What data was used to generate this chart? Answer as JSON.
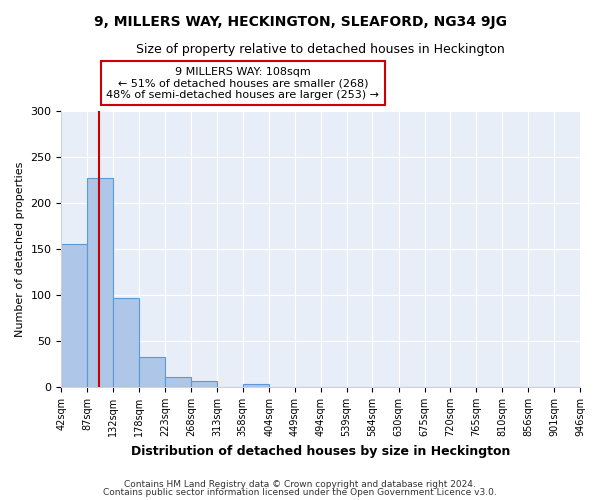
{
  "title": "9, MILLERS WAY, HECKINGTON, SLEAFORD, NG34 9JG",
  "subtitle": "Size of property relative to detached houses in Heckington",
  "xlabel": "Distribution of detached houses by size in Heckington",
  "ylabel": "Number of detached properties",
  "bin_edges": [
    42,
    87,
    132,
    178,
    223,
    268,
    313,
    358,
    404,
    449,
    494,
    539,
    584,
    630,
    675,
    720,
    765,
    810,
    856,
    901,
    946
  ],
  "bar_heights": [
    155,
    227,
    97,
    33,
    11,
    7,
    0,
    3,
    0,
    0,
    0,
    0,
    0,
    0,
    0,
    0,
    0,
    0,
    0,
    0
  ],
  "bar_color": "#aec6e8",
  "bar_edgecolor": "#5b9bd5",
  "property_size": 108,
  "redline_color": "#cc0000",
  "annotation_line1": "9 MILLERS WAY: 108sqm",
  "annotation_line2": "← 51% of detached houses are smaller (268)",
  "annotation_line3": "48% of semi-detached houses are larger (253) →",
  "annotation_box_edgecolor": "#cc0000",
  "ylim": [
    0,
    300
  ],
  "yticks": [
    0,
    50,
    100,
    150,
    200,
    250,
    300
  ],
  "footer1": "Contains HM Land Registry data © Crown copyright and database right 2024.",
  "footer2": "Contains public sector information licensed under the Open Government Licence v3.0.",
  "bg_color": "#e8eef7"
}
